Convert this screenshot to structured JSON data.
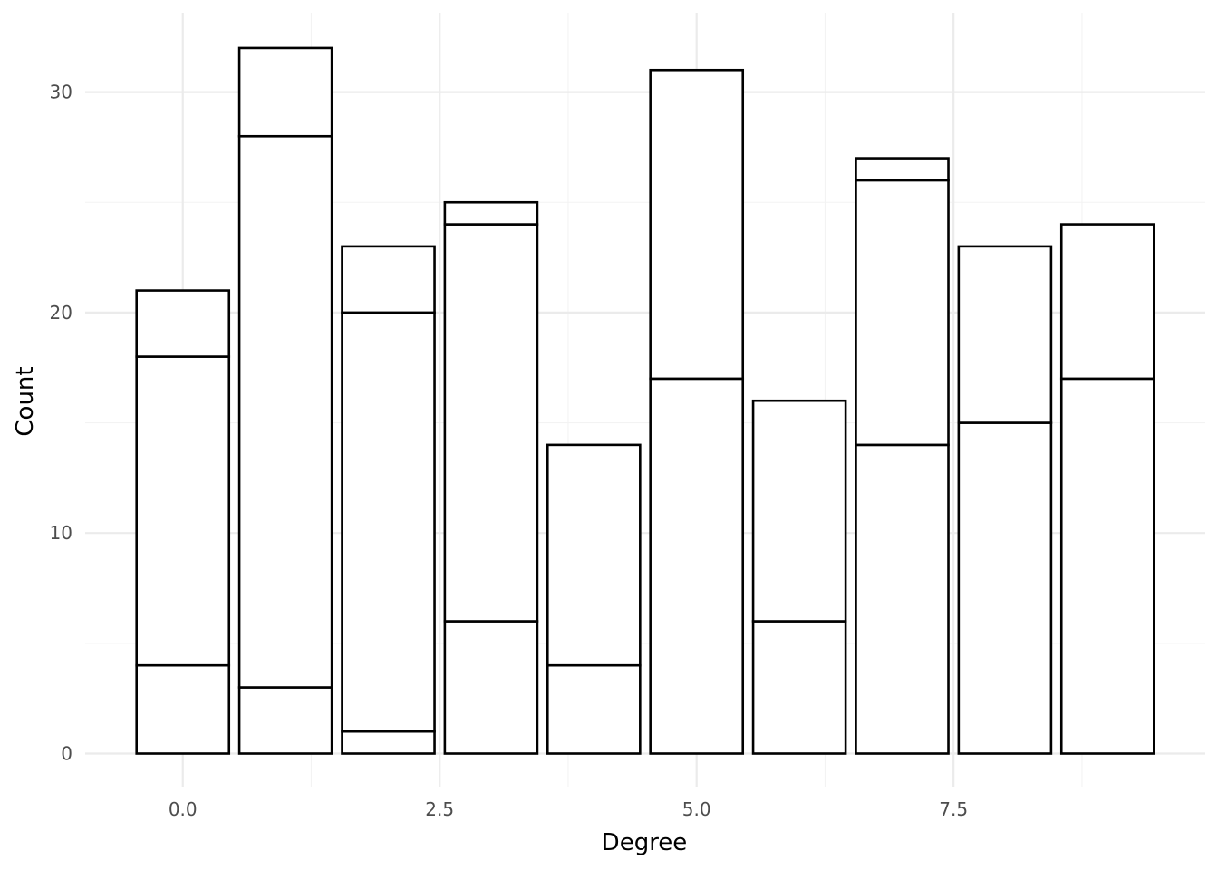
{
  "chart_data": {
    "type": "bar",
    "stacked": true,
    "xlabel": "Degree",
    "ylabel": "Count",
    "xlim": [
      -0.95,
      9.95
    ],
    "ylim": [
      -1.5,
      33.6
    ],
    "x_ticks": [
      0,
      2.5,
      5,
      7.5
    ],
    "x_tick_labels": [
      "0.0",
      "2.5",
      "5.0",
      "7.5"
    ],
    "y_ticks": [
      0,
      10,
      20,
      30
    ],
    "y_tick_labels": [
      "0",
      "10",
      "20",
      "30"
    ],
    "grid": true,
    "bar_fill": "#ffffff",
    "bar_outline": "#000000",
    "x": [
      0,
      1,
      2,
      3,
      4,
      5,
      6,
      7,
      8,
      9
    ],
    "stack_boundaries": [
      [
        4,
        18,
        21
      ],
      [
        3,
        28,
        32
      ],
      [
        1,
        20,
        23
      ],
      [
        6,
        24,
        25
      ],
      [
        4,
        14
      ],
      [
        17,
        31
      ],
      [
        6,
        16
      ],
      [
        14,
        26,
        27
      ],
      [
        15,
        23
      ],
      [
        17,
        24
      ]
    ],
    "totals": [
      21,
      32,
      23,
      25,
      14,
      31,
      16,
      27,
      23,
      24
    ]
  }
}
